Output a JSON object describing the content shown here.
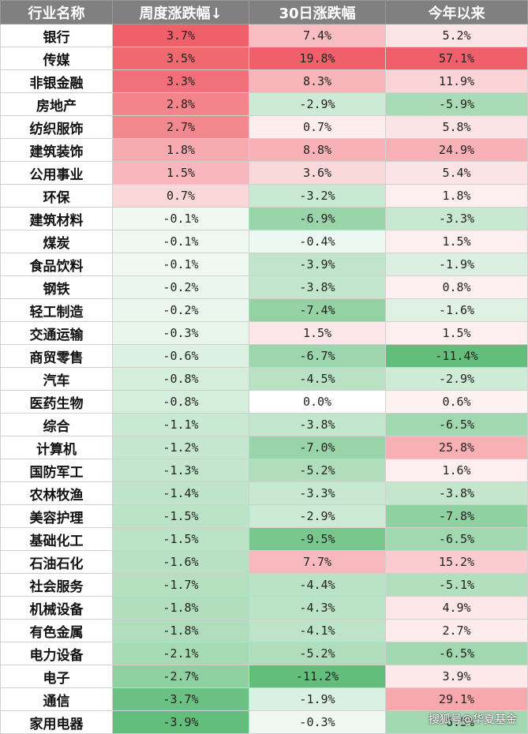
{
  "header": {
    "industry": "行业名称",
    "weekly": "周度涨跌幅↓",
    "d30": "30日涨跌幅",
    "ytd": "今年以来"
  },
  "colors": {
    "header_bg": "#808080",
    "positive_max": "#f0606a",
    "negative_max": "#63be7b"
  },
  "rows": [
    {
      "name": "银行",
      "weekly": "3.7%",
      "d30": "7.4%",
      "ytd": "5.2%",
      "wv": 3.7,
      "dv": 7.4,
      "yv": 5.2
    },
    {
      "name": "传媒",
      "weekly": "3.5%",
      "d30": "19.8%",
      "ytd": "57.1%",
      "wv": 3.5,
      "dv": 19.8,
      "yv": 57.1
    },
    {
      "name": "非银金融",
      "weekly": "3.3%",
      "d30": "8.3%",
      "ytd": "11.9%",
      "wv": 3.3,
      "dv": 8.3,
      "yv": 11.9
    },
    {
      "name": "房地产",
      "weekly": "2.8%",
      "d30": "-2.9%",
      "ytd": "-5.9%",
      "wv": 2.8,
      "dv": -2.9,
      "yv": -5.9
    },
    {
      "name": "纺织服饰",
      "weekly": "2.7%",
      "d30": "0.7%",
      "ytd": "5.8%",
      "wv": 2.7,
      "dv": 0.7,
      "yv": 5.8
    },
    {
      "name": "建筑装饰",
      "weekly": "1.8%",
      "d30": "8.8%",
      "ytd": "24.9%",
      "wv": 1.8,
      "dv": 8.8,
      "yv": 24.9
    },
    {
      "name": "公用事业",
      "weekly": "1.5%",
      "d30": "3.6%",
      "ytd": "5.4%",
      "wv": 1.5,
      "dv": 3.6,
      "yv": 5.4
    },
    {
      "name": "环保",
      "weekly": "0.7%",
      "d30": "-3.2%",
      "ytd": "1.8%",
      "wv": 0.7,
      "dv": -3.2,
      "yv": 1.8
    },
    {
      "name": "建筑材料",
      "weekly": "-0.1%",
      "d30": "-6.9%",
      "ytd": "-3.3%",
      "wv": -0.1,
      "dv": -6.9,
      "yv": -3.3
    },
    {
      "name": "煤炭",
      "weekly": "-0.1%",
      "d30": "-0.4%",
      "ytd": "1.5%",
      "wv": -0.1,
      "dv": -0.4,
      "yv": 1.5
    },
    {
      "name": "食品饮料",
      "weekly": "-0.1%",
      "d30": "-3.9%",
      "ytd": "-1.9%",
      "wv": -0.1,
      "dv": -3.9,
      "yv": -1.9
    },
    {
      "name": "钢铁",
      "weekly": "-0.2%",
      "d30": "-3.8%",
      "ytd": "0.8%",
      "wv": -0.2,
      "dv": -3.8,
      "yv": 0.8
    },
    {
      "name": "轻工制造",
      "weekly": "-0.2%",
      "d30": "-7.4%",
      "ytd": "-1.6%",
      "wv": -0.2,
      "dv": -7.4,
      "yv": -1.6
    },
    {
      "name": "交通运输",
      "weekly": "-0.3%",
      "d30": "1.5%",
      "ytd": "1.5%",
      "wv": -0.3,
      "dv": 1.5,
      "yv": 1.5
    },
    {
      "name": "商贸零售",
      "weekly": "-0.6%",
      "d30": "-6.7%",
      "ytd": "-11.4%",
      "wv": -0.6,
      "dv": -6.7,
      "yv": -11.4
    },
    {
      "name": "汽车",
      "weekly": "-0.8%",
      "d30": "-4.5%",
      "ytd": "-2.9%",
      "wv": -0.8,
      "dv": -4.5,
      "yv": -2.9
    },
    {
      "name": "医药生物",
      "weekly": "-0.8%",
      "d30": "0.0%",
      "ytd": "0.6%",
      "wv": -0.8,
      "dv": 0.0,
      "yv": 0.6
    },
    {
      "name": "综合",
      "weekly": "-1.1%",
      "d30": "-3.8%",
      "ytd": "-6.5%",
      "wv": -1.1,
      "dv": -3.8,
      "yv": -6.5
    },
    {
      "name": "计算机",
      "weekly": "-1.2%",
      "d30": "-7.0%",
      "ytd": "25.8%",
      "wv": -1.2,
      "dv": -7.0,
      "yv": 25.8
    },
    {
      "name": "国防军工",
      "weekly": "-1.3%",
      "d30": "-5.2%",
      "ytd": "1.6%",
      "wv": -1.3,
      "dv": -5.2,
      "yv": 1.6
    },
    {
      "name": "农林牧渔",
      "weekly": "-1.4%",
      "d30": "-3.3%",
      "ytd": "-3.8%",
      "wv": -1.4,
      "dv": -3.3,
      "yv": -3.8
    },
    {
      "name": "美容护理",
      "weekly": "-1.5%",
      "d30": "-2.9%",
      "ytd": "-7.8%",
      "wv": -1.5,
      "dv": -2.9,
      "yv": -7.8
    },
    {
      "name": "基础化工",
      "weekly": "-1.5%",
      "d30": "-9.5%",
      "ytd": "-6.5%",
      "wv": -1.5,
      "dv": -9.5,
      "yv": -6.5
    },
    {
      "name": "石油石化",
      "weekly": "-1.6%",
      "d30": "7.7%",
      "ytd": "15.2%",
      "wv": -1.6,
      "dv": 7.7,
      "yv": 15.2
    },
    {
      "name": "社会服务",
      "weekly": "-1.7%",
      "d30": "-4.4%",
      "ytd": "-5.1%",
      "wv": -1.7,
      "dv": -4.4,
      "yv": -5.1
    },
    {
      "name": "机械设备",
      "weekly": "-1.8%",
      "d30": "-4.3%",
      "ytd": "4.9%",
      "wv": -1.8,
      "dv": -4.3,
      "yv": 4.9
    },
    {
      "name": "有色金属",
      "weekly": "-1.8%",
      "d30": "-4.1%",
      "ytd": "2.7%",
      "wv": -1.8,
      "dv": -4.1,
      "yv": 2.7
    },
    {
      "name": "电力设备",
      "weekly": "-2.1%",
      "d30": "-5.2%",
      "ytd": "-6.5%",
      "wv": -2.1,
      "dv": -5.2,
      "yv": -6.5
    },
    {
      "name": "电子",
      "weekly": "-2.7%",
      "d30": "-11.2%",
      "ytd": "3.9%",
      "wv": -2.7,
      "dv": -11.2,
      "yv": 3.9
    },
    {
      "name": "通信",
      "weekly": "-3.7%",
      "d30": "-1.9%",
      "ytd": "29.1%",
      "wv": -3.7,
      "dv": -1.9,
      "yv": 29.1
    },
    {
      "name": "家用电器",
      "weekly": "-3.9%",
      "d30": "-0.3%",
      "ytd": "-6.5%",
      "wv": -3.9,
      "dv": -0.3,
      "yv": -6.5
    }
  ],
  "watermark": "搜狐号@华夏基金"
}
